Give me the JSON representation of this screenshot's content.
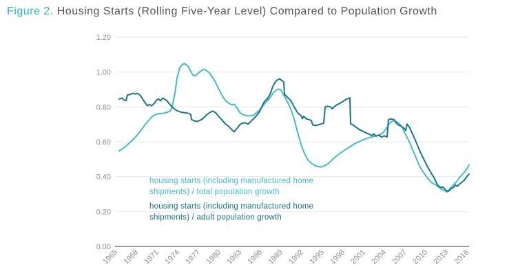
{
  "figure": {
    "label": "Figure 2.",
    "title": "Housing Starts (Rolling Five-Year Level) Compared to Population Growth"
  },
  "colors": {
    "accent_teal": "#2db1c5",
    "title_text": "#50555a",
    "series_total": "#41bccc",
    "series_adult": "#1b7389",
    "tick_text": "#8b9095",
    "gridline": "#e7e8e9",
    "axis_line": "#9b9ea1"
  },
  "legend": {
    "items": [
      {
        "id": "total",
        "color_key": "series_total",
        "line1": "housing starts (including manufactured home",
        "line2": "shipments) / total population growth"
      },
      {
        "id": "adult",
        "color_key": "series_adult",
        "line1": "housing starts (including manufactured home",
        "line2": "shipments) / adult population growth"
      }
    ]
  },
  "chart_data": {
    "type": "line",
    "title": "Housing Starts (Rolling Five-Year Level) Compared to Population Growth",
    "grid": "horizontal",
    "legend_position": "inside bottom-left",
    "x_axis": {
      "ticks": [
        1965,
        1968,
        1971,
        1974,
        1977,
        1980,
        1983,
        1986,
        1989,
        1992,
        1995,
        1998,
        2001,
        2004,
        2007,
        2010,
        2013,
        2016
      ],
      "range": [
        1965,
        2017.6
      ],
      "tick_rotation": -45
    },
    "y_axis": {
      "ticks": [
        "0.00",
        "0.20",
        "0.40",
        "0.60",
        "0.80",
        "1.00",
        "1.20"
      ],
      "range": [
        0,
        1.2
      ]
    },
    "series": [
      {
        "id": "total",
        "name": "housing starts (including manufactured home shipments) / total population growth",
        "color": "#41bccc",
        "points": [
          [
            1965.6,
            0.548
          ],
          [
            1966,
            0.558
          ],
          [
            1966.5,
            0.572
          ],
          [
            1967,
            0.59
          ],
          [
            1967.5,
            0.608
          ],
          [
            1968,
            0.628
          ],
          [
            1968.5,
            0.652
          ],
          [
            1969,
            0.678
          ],
          [
            1969.5,
            0.705
          ],
          [
            1970,
            0.728
          ],
          [
            1970.5,
            0.748
          ],
          [
            1971,
            0.758
          ],
          [
            1971.5,
            0.763
          ],
          [
            1972,
            0.763
          ],
          [
            1972.5,
            0.768
          ],
          [
            1973,
            0.776
          ],
          [
            1973.3,
            0.8
          ],
          [
            1973.7,
            0.88
          ],
          [
            1974,
            0.965
          ],
          [
            1974.4,
            1.025
          ],
          [
            1974.8,
            1.045
          ],
          [
            1975.1,
            1.048
          ],
          [
            1975.5,
            1.038
          ],
          [
            1975.8,
            1.02
          ],
          [
            1976.1,
            0.995
          ],
          [
            1976.4,
            0.978
          ],
          [
            1976.8,
            0.983
          ],
          [
            1977.2,
            0.998
          ],
          [
            1977.6,
            1.01
          ],
          [
            1977.9,
            1.016
          ],
          [
            1978.3,
            1.008
          ],
          [
            1978.7,
            0.995
          ],
          [
            1979.1,
            0.972
          ],
          [
            1979.5,
            0.948
          ],
          [
            1979.9,
            0.915
          ],
          [
            1980.3,
            0.885
          ],
          [
            1980.7,
            0.855
          ],
          [
            1981.1,
            0.834
          ],
          [
            1981.6,
            0.82
          ],
          [
            1982,
            0.812
          ],
          [
            1982.3,
            0.815
          ],
          [
            1982.7,
            0.795
          ],
          [
            1983.1,
            0.768
          ],
          [
            1983.6,
            0.755
          ],
          [
            1984.1,
            0.75
          ],
          [
            1984.6,
            0.748
          ],
          [
            1985.1,
            0.753
          ],
          [
            1985.6,
            0.768
          ],
          [
            1986,
            0.782
          ],
          [
            1986.4,
            0.802
          ],
          [
            1986.8,
            0.822
          ],
          [
            1987.2,
            0.838
          ],
          [
            1987.6,
            0.858
          ],
          [
            1988,
            0.882
          ],
          [
            1988.4,
            0.897
          ],
          [
            1988.7,
            0.902
          ],
          [
            1989.1,
            0.897
          ],
          [
            1989.5,
            0.868
          ],
          [
            1990,
            0.832
          ],
          [
            1990.5,
            0.79
          ],
          [
            1991,
            0.732
          ],
          [
            1991.5,
            0.655
          ],
          [
            1992,
            0.585
          ],
          [
            1992.5,
            0.533
          ],
          [
            1993,
            0.497
          ],
          [
            1993.5,
            0.477
          ],
          [
            1994,
            0.464
          ],
          [
            1994.5,
            0.457
          ],
          [
            1995,
            0.456
          ],
          [
            1995.5,
            0.464
          ],
          [
            1996,
            0.477
          ],
          [
            1996.5,
            0.496
          ],
          [
            1997,
            0.513
          ],
          [
            1997.5,
            0.529
          ],
          [
            1998,
            0.543
          ],
          [
            1998.5,
            0.556
          ],
          [
            1999,
            0.569
          ],
          [
            1999.5,
            0.582
          ],
          [
            2000,
            0.593
          ],
          [
            2000.5,
            0.602
          ],
          [
            2001,
            0.611
          ],
          [
            2001.5,
            0.619
          ],
          [
            2002,
            0.625
          ],
          [
            2002.5,
            0.63
          ],
          [
            2003,
            0.634
          ],
          [
            2003.5,
            0.641
          ],
          [
            2004,
            0.655
          ],
          [
            2004.5,
            0.684
          ],
          [
            2005,
            0.712
          ],
          [
            2005.5,
            0.722
          ],
          [
            2005.9,
            0.715
          ],
          [
            2006.3,
            0.702
          ],
          [
            2006.7,
            0.682
          ],
          [
            2007,
            0.656
          ],
          [
            2007.4,
            0.625
          ],
          [
            2007.8,
            0.595
          ],
          [
            2008.1,
            0.565
          ],
          [
            2008.5,
            0.527
          ],
          [
            2008.9,
            0.49
          ],
          [
            2009.2,
            0.462
          ],
          [
            2009.6,
            0.435
          ],
          [
            2010,
            0.412
          ],
          [
            2010.4,
            0.39
          ],
          [
            2010.8,
            0.372
          ],
          [
            2011.2,
            0.36
          ],
          [
            2011.6,
            0.352
          ],
          [
            2012,
            0.34
          ],
          [
            2012.4,
            0.328
          ],
          [
            2012.8,
            0.32
          ],
          [
            2013.1,
            0.317
          ],
          [
            2013.4,
            0.322
          ],
          [
            2013.8,
            0.34
          ],
          [
            2014.2,
            0.356
          ],
          [
            2014.6,
            0.372
          ],
          [
            2015,
            0.394
          ],
          [
            2015.4,
            0.412
          ],
          [
            2015.8,
            0.43
          ],
          [
            2016.2,
            0.452
          ],
          [
            2016.4,
            0.468
          ]
        ]
      },
      {
        "id": "adult",
        "name": "housing starts (including manufactured home shipments) / adult population growth",
        "color": "#1b7389",
        "points": [
          [
            1965.6,
            0.845
          ],
          [
            1966,
            0.851
          ],
          [
            1966.3,
            0.84
          ],
          [
            1966.6,
            0.836
          ],
          [
            1966.8,
            0.868
          ],
          [
            1967.2,
            0.872
          ],
          [
            1967.6,
            0.878
          ],
          [
            1968,
            0.874
          ],
          [
            1968.2,
            0.878
          ],
          [
            1968.5,
            0.872
          ],
          [
            1968.8,
            0.858
          ],
          [
            1969.1,
            0.84
          ],
          [
            1969.4,
            0.822
          ],
          [
            1969.7,
            0.807
          ],
          [
            1970,
            0.814
          ],
          [
            1970.3,
            0.806
          ],
          [
            1970.7,
            0.82
          ],
          [
            1971,
            0.838
          ],
          [
            1971.3,
            0.846
          ],
          [
            1971.6,
            0.835
          ],
          [
            1971.9,
            0.85
          ],
          [
            1972.2,
            0.845
          ],
          [
            1972.6,
            0.832
          ],
          [
            1973,
            0.812
          ],
          [
            1973.4,
            0.795
          ],
          [
            1973.8,
            0.783
          ],
          [
            1974.2,
            0.775
          ],
          [
            1974.7,
            0.769
          ],
          [
            1975.2,
            0.766
          ],
          [
            1975.7,
            0.763
          ],
          [
            1976,
            0.756
          ],
          [
            1976.1,
            0.728
          ],
          [
            1976.5,
            0.72
          ],
          [
            1976.9,
            0.717
          ],
          [
            1977.3,
            0.722
          ],
          [
            1977.7,
            0.731
          ],
          [
            1978.1,
            0.747
          ],
          [
            1978.5,
            0.761
          ],
          [
            1978.9,
            0.771
          ],
          [
            1979.2,
            0.776
          ],
          [
            1979.6,
            0.767
          ],
          [
            1980,
            0.748
          ],
          [
            1980.5,
            0.726
          ],
          [
            1981,
            0.703
          ],
          [
            1981.5,
            0.689
          ],
          [
            1981.9,
            0.672
          ],
          [
            1982.3,
            0.657
          ],
          [
            1982.7,
            0.676
          ],
          [
            1983.1,
            0.697
          ],
          [
            1983.5,
            0.707
          ],
          [
            1983.9,
            0.709
          ],
          [
            1984.3,
            0.701
          ],
          [
            1984.7,
            0.716
          ],
          [
            1985.1,
            0.732
          ],
          [
            1985.5,
            0.748
          ],
          [
            1985.9,
            0.768
          ],
          [
            1986.3,
            0.8
          ],
          [
            1986.7,
            0.832
          ],
          [
            1987.1,
            0.846
          ],
          [
            1987.5,
            0.872
          ],
          [
            1987.9,
            0.916
          ],
          [
            1988.2,
            0.94
          ],
          [
            1988.5,
            0.953
          ],
          [
            1988.9,
            0.961
          ],
          [
            1989.2,
            0.952
          ],
          [
            1989.5,
            0.942
          ],
          [
            1989.6,
            0.872
          ],
          [
            1990,
            0.857
          ],
          [
            1990.5,
            0.837
          ],
          [
            1991,
            0.8
          ],
          [
            1991.5,
            0.766
          ],
          [
            1992,
            0.75
          ],
          [
            1992.2,
            0.733
          ],
          [
            1992.4,
            0.746
          ],
          [
            1992.7,
            0.733
          ],
          [
            1993.1,
            0.728
          ],
          [
            1993.5,
            0.722
          ],
          [
            1993.7,
            0.697
          ],
          [
            1994.1,
            0.693
          ],
          [
            1994.5,
            0.697
          ],
          [
            1994.9,
            0.702
          ],
          [
            1995.3,
            0.707
          ],
          [
            1995.5,
            0.8
          ],
          [
            1995.9,
            0.804
          ],
          [
            1996.3,
            0.8
          ],
          [
            1996.5,
            0.789
          ],
          [
            1996.8,
            0.8
          ],
          [
            1997.2,
            0.812
          ],
          [
            1997.6,
            0.82
          ],
          [
            1998,
            0.829
          ],
          [
            1998.4,
            0.84
          ],
          [
            1998.8,
            0.848
          ],
          [
            1999.1,
            0.852
          ],
          [
            1999.2,
            0.703
          ],
          [
            1999.6,
            0.695
          ],
          [
            2000,
            0.684
          ],
          [
            2000.4,
            0.672
          ],
          [
            2000.9,
            0.662
          ],
          [
            2001.4,
            0.652
          ],
          [
            2001.9,
            0.643
          ],
          [
            2002.3,
            0.636
          ],
          [
            2002.6,
            0.645
          ],
          [
            2002.9,
            0.632
          ],
          [
            2003.3,
            0.639
          ],
          [
            2003.7,
            0.627
          ],
          [
            2004.1,
            0.634
          ],
          [
            2004.5,
            0.628
          ],
          [
            2004.7,
            0.727
          ],
          [
            2005.1,
            0.731
          ],
          [
            2005.5,
            0.727
          ],
          [
            2005.8,
            0.708
          ],
          [
            2006.2,
            0.695
          ],
          [
            2006.6,
            0.688
          ],
          [
            2007,
            0.676
          ],
          [
            2007.2,
            0.664
          ],
          [
            2007.4,
            0.702
          ],
          [
            2007.8,
            0.68
          ],
          [
            2008.1,
            0.652
          ],
          [
            2008.5,
            0.618
          ],
          [
            2008.9,
            0.58
          ],
          [
            2009.3,
            0.543
          ],
          [
            2009.7,
            0.51
          ],
          [
            2010.1,
            0.478
          ],
          [
            2010.5,
            0.448
          ],
          [
            2010.9,
            0.42
          ],
          [
            2011.3,
            0.396
          ],
          [
            2011.7,
            0.362
          ],
          [
            2012,
            0.345
          ],
          [
            2012.3,
            0.338
          ],
          [
            2012.6,
            0.341
          ],
          [
            2012.9,
            0.329
          ],
          [
            2013.2,
            0.313
          ],
          [
            2013.5,
            0.319
          ],
          [
            2013.8,
            0.332
          ],
          [
            2014.1,
            0.337
          ],
          [
            2014.4,
            0.352
          ],
          [
            2014.7,
            0.345
          ],
          [
            2015,
            0.357
          ],
          [
            2015.3,
            0.367
          ],
          [
            2015.7,
            0.379
          ],
          [
            2016,
            0.396
          ],
          [
            2016.2,
            0.407
          ],
          [
            2016.4,
            0.415
          ]
        ]
      }
    ]
  }
}
